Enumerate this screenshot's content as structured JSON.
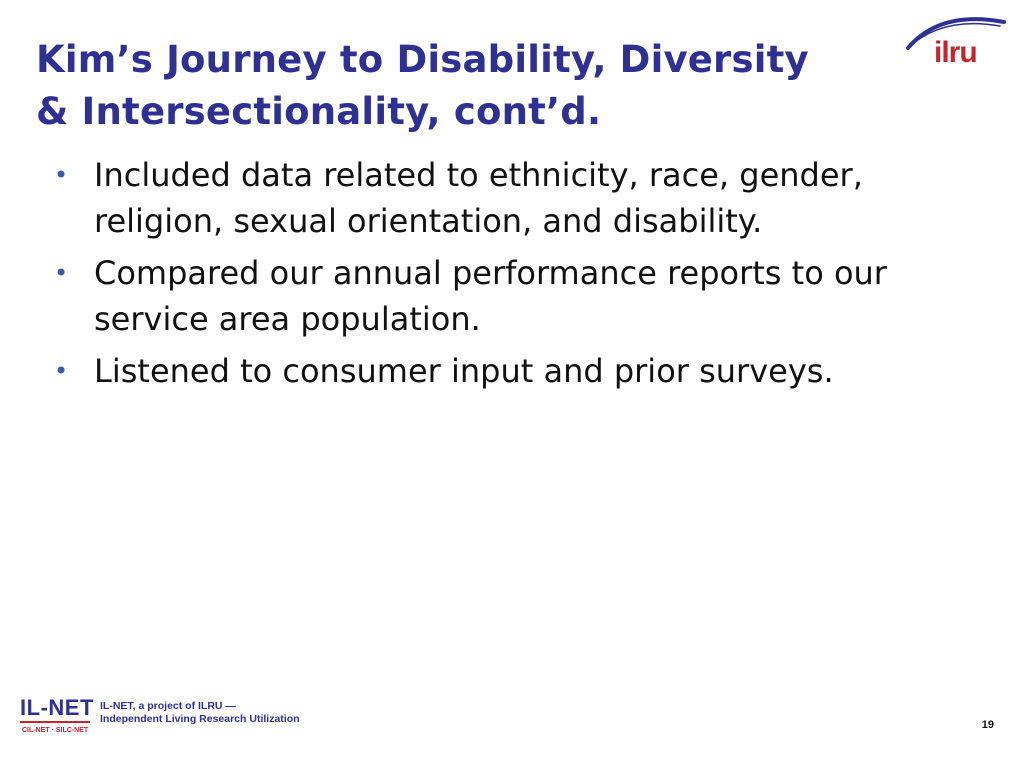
{
  "slide": {
    "title_lines": [
      "Kim’s Journey to Disability, Diversity",
      "& Intersectionality, cont’d."
    ],
    "bullets": [
      "Included data related to ethnicity, race, gender, religion, sexual orientation, and disability.",
      "Compared our annual performance reports to our service area population.",
      "Listened to consumer input and prior surveys."
    ],
    "bullet_glyph": "•",
    "page_number": "19"
  },
  "header_logo": {
    "icon": "ilru-logo",
    "text": "ilru",
    "colors": {
      "arc": "#2e3192",
      "text": "#c1272d"
    }
  },
  "footer": {
    "brand": "IL-NET",
    "sub_brand": "CIL-NET · SILC-NET",
    "tagline_lines": [
      "IL-NET, a project of ILRU —",
      "Independent Living Research Utilization"
    ]
  },
  "colors": {
    "title": "#2e3192",
    "bullet": "#3d5aa6",
    "body_text": "#111111",
    "accent_red": "#c1272d"
  }
}
